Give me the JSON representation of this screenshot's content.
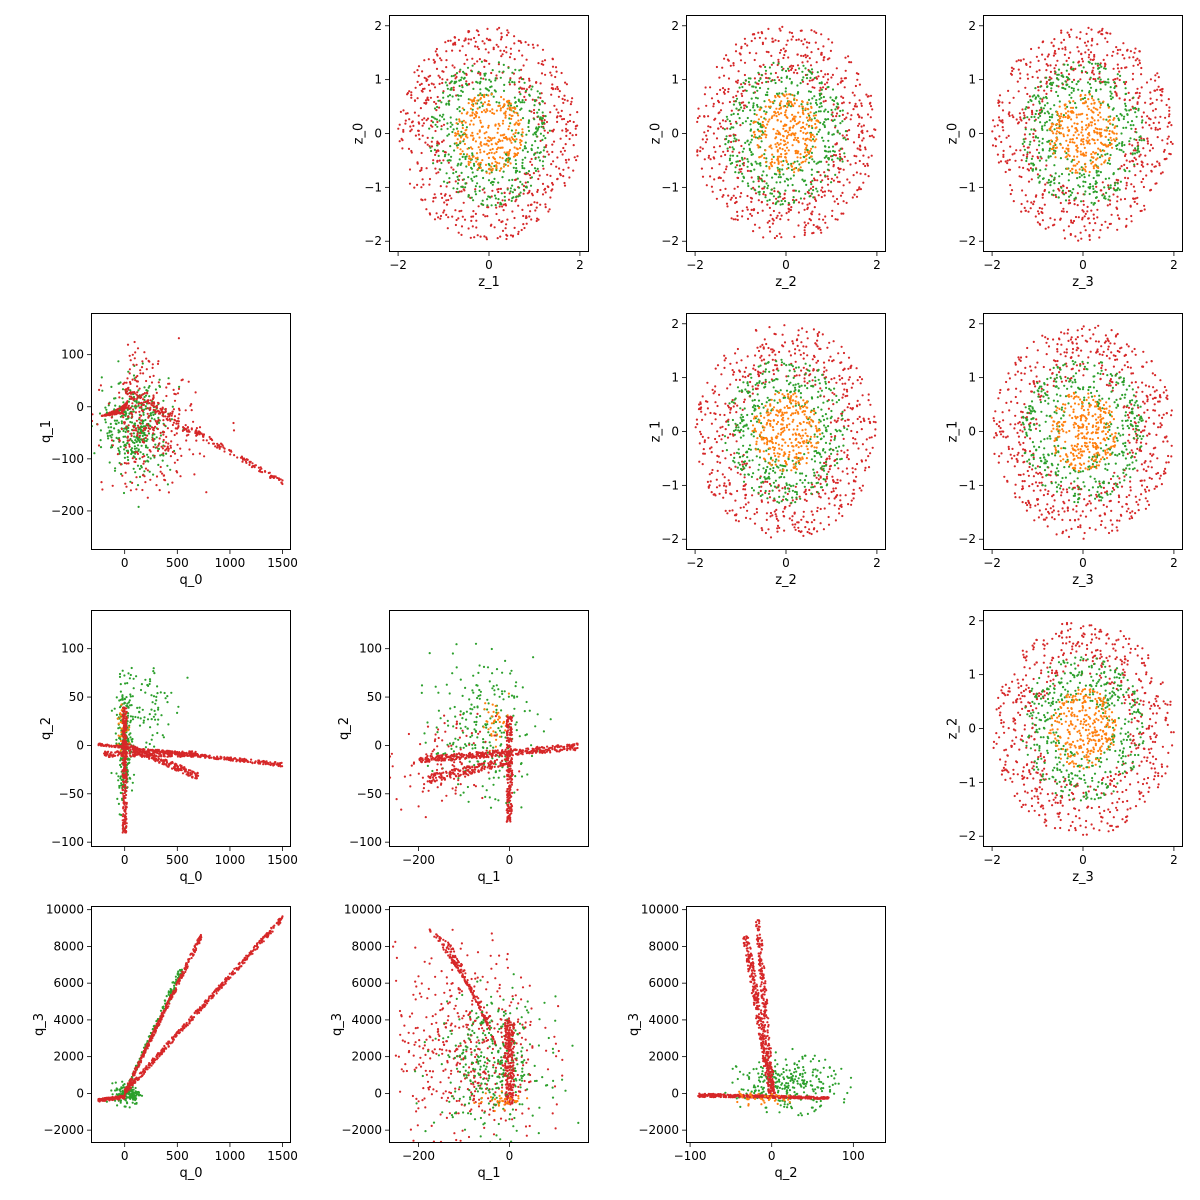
{
  "colors": {
    "red": "#d62728",
    "green": "#2ca02c",
    "orange": "#ff7f0e"
  },
  "chart_data": [
    {
      "type": "scatter",
      "row": 0,
      "col": 1,
      "xlabel": "z_1",
      "ylabel": "z_0",
      "xlim": [
        -2.2,
        2.2
      ],
      "ylim": [
        -2.2,
        2.2
      ],
      "xticks": [
        -2,
        0,
        2
      ],
      "xtick_labels": [
        "−2",
        "0",
        "2"
      ],
      "yticks": [
        -2,
        -1,
        0,
        1,
        2
      ],
      "ytick_labels": [
        "−2",
        "−1",
        "0",
        "1",
        "2"
      ],
      "series": [
        {
          "color": "#d62728",
          "shape": "disk",
          "radius_max": 2.0,
          "radius_min": 1.0,
          "count": 650
        },
        {
          "color": "#2ca02c",
          "shape": "disk",
          "radius_max": 1.35,
          "radius_min": 0.5,
          "count": 450
        },
        {
          "color": "#ff7f0e",
          "shape": "disk",
          "radius_max": 0.75,
          "radius_min": 0,
          "count": 300
        }
      ]
    },
    {
      "type": "scatter",
      "row": 0,
      "col": 2,
      "xlabel": "z_2",
      "ylabel": "z_0",
      "xlim": [
        -2.2,
        2.2
      ],
      "ylim": [
        -2.2,
        2.2
      ],
      "xticks": [
        -2,
        0,
        2
      ],
      "xtick_labels": [
        "−2",
        "0",
        "2"
      ],
      "yticks": [
        -2,
        -1,
        0,
        1,
        2
      ],
      "ytick_labels": [
        "−2",
        "−1",
        "0",
        "1",
        "2"
      ],
      "series": [
        {
          "color": "#d62728",
          "shape": "disk",
          "radius_max": 2.0,
          "radius_min": 1.0,
          "count": 650
        },
        {
          "color": "#2ca02c",
          "shape": "disk",
          "radius_max": 1.35,
          "radius_min": 0.5,
          "count": 450
        },
        {
          "color": "#ff7f0e",
          "shape": "disk",
          "radius_max": 0.75,
          "radius_min": 0,
          "count": 300
        }
      ]
    },
    {
      "type": "scatter",
      "row": 0,
      "col": 3,
      "xlabel": "z_3",
      "ylabel": "z_0",
      "xlim": [
        -2.2,
        2.2
      ],
      "ylim": [
        -2.2,
        2.2
      ],
      "xticks": [
        -2,
        0,
        2
      ],
      "xtick_labels": [
        "−2",
        "0",
        "2"
      ],
      "yticks": [
        -2,
        -1,
        0,
        1,
        2
      ],
      "ytick_labels": [
        "−2",
        "−1",
        "0",
        "1",
        "2"
      ],
      "series": [
        {
          "color": "#d62728",
          "shape": "disk",
          "radius_max": 2.0,
          "radius_min": 1.0,
          "count": 650
        },
        {
          "color": "#2ca02c",
          "shape": "disk",
          "radius_max": 1.35,
          "radius_min": 0.5,
          "count": 450
        },
        {
          "color": "#ff7f0e",
          "shape": "disk",
          "radius_max": 0.75,
          "radius_min": 0,
          "count": 300
        }
      ]
    },
    {
      "type": "scatter",
      "row": 1,
      "col": 2,
      "xlabel": "z_2",
      "ylabel": "z_1",
      "xlim": [
        -2.2,
        2.2
      ],
      "ylim": [
        -2.2,
        2.2
      ],
      "xticks": [
        -2,
        0,
        2
      ],
      "xtick_labels": [
        "−2",
        "0",
        "2"
      ],
      "yticks": [
        -2,
        -1,
        0,
        1,
        2
      ],
      "ytick_labels": [
        "−2",
        "−1",
        "0",
        "1",
        "2"
      ],
      "series": [
        {
          "color": "#d62728",
          "shape": "disk",
          "radius_max": 2.0,
          "radius_min": 1.0,
          "count": 650
        },
        {
          "color": "#2ca02c",
          "shape": "disk",
          "radius_max": 1.35,
          "radius_min": 0.5,
          "count": 450
        },
        {
          "color": "#ff7f0e",
          "shape": "disk",
          "radius_max": 0.75,
          "radius_min": 0,
          "count": 300
        }
      ]
    },
    {
      "type": "scatter",
      "row": 1,
      "col": 3,
      "xlabel": "z_3",
      "ylabel": "z_1",
      "xlim": [
        -2.2,
        2.2
      ],
      "ylim": [
        -2.2,
        2.2
      ],
      "xticks": [
        -2,
        0,
        2
      ],
      "xtick_labels": [
        "−2",
        "0",
        "2"
      ],
      "yticks": [
        -2,
        -1,
        0,
        1,
        2
      ],
      "ytick_labels": [
        "−2",
        "−1",
        "0",
        "1",
        "2"
      ],
      "series": [
        {
          "color": "#d62728",
          "shape": "disk",
          "radius_max": 2.0,
          "radius_min": 1.0,
          "count": 650
        },
        {
          "color": "#2ca02c",
          "shape": "disk",
          "radius_max": 1.35,
          "radius_min": 0.5,
          "count": 450
        },
        {
          "color": "#ff7f0e",
          "shape": "disk",
          "radius_max": 0.75,
          "radius_min": 0,
          "count": 300
        }
      ]
    },
    {
      "type": "scatter",
      "row": 2,
      "col": 3,
      "xlabel": "z_3",
      "ylabel": "z_2",
      "xlim": [
        -2.2,
        2.2
      ],
      "ylim": [
        -2.2,
        2.2
      ],
      "xticks": [
        -2,
        0,
        2
      ],
      "xtick_labels": [
        "−2",
        "0",
        "2"
      ],
      "yticks": [
        -2,
        -1,
        0,
        1,
        2
      ],
      "ytick_labels": [
        "−2",
        "−1",
        "0",
        "1",
        "2"
      ],
      "series": [
        {
          "color": "#d62728",
          "shape": "disk",
          "radius_max": 2.0,
          "radius_min": 1.0,
          "count": 650
        },
        {
          "color": "#2ca02c",
          "shape": "disk",
          "radius_max": 1.35,
          "radius_min": 0.5,
          "count": 450
        },
        {
          "color": "#ff7f0e",
          "shape": "disk",
          "radius_max": 0.75,
          "radius_min": 0,
          "count": 300
        }
      ]
    },
    {
      "type": "scatter",
      "row": 1,
      "col": 0,
      "xlabel": "q_0",
      "ylabel": "q_1",
      "xlim": [
        -320,
        1580
      ],
      "ylim": [
        -275,
        180
      ],
      "xticks": [
        0,
        500,
        1000,
        1500
      ],
      "xtick_labels": [
        "0",
        "500",
        "1000",
        "1500"
      ],
      "yticks": [
        -200,
        -100,
        0,
        100
      ],
      "ytick_labels": [
        "−200",
        "−100",
        "0",
        "100"
      ],
      "series": [
        {
          "color": "#d62728",
          "shape": "band",
          "x0": [
            -250,
            0
          ],
          "y0": [
            -20,
            0
          ],
          "x1": [
            0,
            30
          ],
          "y1": [
            -12,
            12
          ],
          "count": 220
        },
        {
          "color": "#2ca02c",
          "shape": "cloud",
          "cx": 120,
          "cy": -40,
          "sx": 160,
          "sy": 45,
          "count": 380
        },
        {
          "color": "#d62728",
          "shape": "cloud",
          "cx": 250,
          "cy": -50,
          "sx": 220,
          "sy": 55,
          "count": 300
        },
        {
          "color": "#d62728",
          "shape": "band",
          "x0": [
            0,
            0
          ],
          "y0": [
            20,
            40
          ],
          "x1": [
            1500,
            1500
          ],
          "y1": [
            -150,
            -140
          ],
          "count": 200
        },
        {
          "color": "#d62728",
          "shape": "cloud",
          "cx": 130,
          "cy": 70,
          "sx": 60,
          "sy": 40,
          "count": 40
        }
      ]
    },
    {
      "type": "scatter",
      "row": 2,
      "col": 0,
      "xlabel": "q_0",
      "ylabel": "q_2",
      "xlim": [
        -320,
        1580
      ],
      "ylim": [
        -105,
        140
      ],
      "xticks": [
        0,
        500,
        1000,
        1500
      ],
      "xtick_labels": [
        "0",
        "500",
        "1000",
        "1500"
      ],
      "yticks": [
        -100,
        -50,
        0,
        50,
        100
      ],
      "ytick_labels": [
        "−100",
        "−50",
        "0",
        "50",
        "100"
      ],
      "series": [
        {
          "color": "#2ca02c",
          "shape": "cloud",
          "cx": 0,
          "cy": 0,
          "sx": 40,
          "sy": 30,
          "count": 250
        },
        {
          "color": "#ff7f0e",
          "shape": "cloud",
          "cx": -10,
          "cy": 20,
          "sx": 20,
          "sy": 15,
          "count": 60
        },
        {
          "color": "#2ca02c",
          "shape": "cloud",
          "cx": 200,
          "cy": 40,
          "sx": 120,
          "sy": 25,
          "count": 80
        },
        {
          "color": "#d62728",
          "shape": "band",
          "x0": [
            -250,
            -250
          ],
          "y0": [
            0,
            2
          ],
          "x1": [
            1500,
            1500
          ],
          "y1": [
            -22,
            -18
          ],
          "count": 350
        },
        {
          "color": "#d62728",
          "shape": "band",
          "x0": [
            0,
            0
          ],
          "y0": [
            -3,
            3
          ],
          "x1": [
            700,
            700
          ],
          "y1": [
            -36,
            -28
          ],
          "count": 200
        },
        {
          "color": "#d62728",
          "shape": "band",
          "x0": [
            -20,
            20
          ],
          "y0": [
            -90,
            -90
          ],
          "x1": [
            -20,
            20
          ],
          "y1": [
            40,
            40
          ],
          "count": 260
        },
        {
          "color": "#d62728",
          "shape": "band",
          "x0": [
            -200,
            -200
          ],
          "y0": [
            -12,
            -6
          ],
          "x1": [
            700,
            700
          ],
          "y1": [
            -12,
            -6
          ],
          "count": 200
        }
      ]
    },
    {
      "type": "scatter",
      "row": 2,
      "col": 1,
      "xlabel": "q_1",
      "ylabel": "q_2",
      "xlim": [
        -265,
        175
      ],
      "ylim": [
        -105,
        140
      ],
      "xticks": [
        -200,
        0
      ],
      "xtick_labels": [
        "−200",
        "0"
      ],
      "yticks": [
        -100,
        -50,
        0,
        50,
        100
      ],
      "ytick_labels": [
        "−100",
        "−50",
        "0",
        "50",
        "100"
      ],
      "series": [
        {
          "color": "#2ca02c",
          "shape": "cloud",
          "cx": -60,
          "cy": 15,
          "sx": 55,
          "sy": 35,
          "count": 260
        },
        {
          "color": "#ff7f0e",
          "shape": "cloud",
          "cx": -30,
          "cy": 25,
          "sx": 15,
          "sy": 12,
          "count": 40
        },
        {
          "color": "#d62728",
          "shape": "band",
          "x0": [
            -200,
            -200
          ],
          "y0": [
            -18,
            -12
          ],
          "x1": [
            150,
            150
          ],
          "y1": [
            -5,
            2
          ],
          "count": 380
        },
        {
          "color": "#d62728",
          "shape": "band",
          "x0": [
            -6,
            6
          ],
          "y0": [
            -80,
            -80
          ],
          "x1": [
            -6,
            6
          ],
          "y1": [
            30,
            30
          ],
          "count": 240
        },
        {
          "color": "#d62728",
          "shape": "band",
          "x0": [
            -180,
            -180
          ],
          "y0": [
            -40,
            -30
          ],
          "x1": [
            0,
            0
          ],
          "y1": [
            -20,
            -12
          ],
          "count": 180
        },
        {
          "color": "#d62728",
          "shape": "cloud",
          "cx": -150,
          "cy": -20,
          "sx": 60,
          "sy": 25,
          "count": 120
        }
      ]
    },
    {
      "type": "scatter",
      "row": 3,
      "col": 0,
      "xlabel": "q_0",
      "ylabel": "q_3",
      "xlim": [
        -320,
        1580
      ],
      "ylim": [
        -2700,
        10200
      ],
      "xticks": [
        0,
        500,
        1000,
        1500
      ],
      "xtick_labels": [
        "0",
        "500",
        "1000",
        "1500"
      ],
      "yticks": [
        -2000,
        0,
        2000,
        4000,
        6000,
        8000,
        10000
      ],
      "ytick_labels": [
        "−2000",
        "0",
        "2000",
        "4000",
        "6000",
        "8000",
        "10000"
      ],
      "series": [
        {
          "color": "#2ca02c",
          "shape": "cloud",
          "cx": 30,
          "cy": 0,
          "sx": 60,
          "sy": 300,
          "count": 150
        },
        {
          "color": "#2ca02c",
          "shape": "band",
          "x0": [
            0,
            0
          ],
          "y0": [
            -100,
            100
          ],
          "x1": [
            550,
            550
          ],
          "y1": [
            6500,
            7300
          ],
          "count": 160
        },
        {
          "color": "#d62728",
          "shape": "band",
          "x0": [
            -250,
            -250
          ],
          "y0": [
            -450,
            -300
          ],
          "x1": [
            0,
            0
          ],
          "y1": [
            -300,
            -100
          ],
          "count": 150
        },
        {
          "color": "#d62728",
          "shape": "band",
          "x0": [
            0,
            0
          ],
          "y0": [
            -100,
            200
          ],
          "x1": [
            1500,
            1500
          ],
          "y1": [
            9400,
            9700
          ],
          "count": 420
        },
        {
          "color": "#d62728",
          "shape": "band",
          "x0": [
            0,
            0
          ],
          "y0": [
            -100,
            200
          ],
          "x1": [
            730,
            730
          ],
          "y1": [
            8400,
            8800
          ],
          "count": 300
        }
      ]
    },
    {
      "type": "scatter",
      "row": 3,
      "col": 1,
      "xlabel": "q_1",
      "ylabel": "q_3",
      "xlim": [
        -265,
        175
      ],
      "ylim": [
        -2700,
        10200
      ],
      "xticks": [
        -200,
        0
      ],
      "xtick_labels": [
        "−200",
        "0"
      ],
      "yticks": [
        -2000,
        0,
        2000,
        4000,
        6000,
        8000,
        10000
      ],
      "ytick_labels": [
        "−2000",
        "0",
        "2000",
        "4000",
        "6000",
        "8000",
        "10000"
      ],
      "series": [
        {
          "color": "#d62728",
          "shape": "cloud",
          "cx": -90,
          "cy": 2500,
          "sx": 80,
          "sy": 2600,
          "count": 500
        },
        {
          "color": "#d62728",
          "shape": "band",
          "x0": [
            -180,
            -120
          ],
          "y0": [
            9000,
            8000
          ],
          "x1": [
            -60,
            -20
          ],
          "y1": [
            5000,
            2000
          ],
          "count": 200
        },
        {
          "color": "#2ca02c",
          "shape": "cloud",
          "cx": -40,
          "cy": 1500,
          "sx": 60,
          "sy": 1800,
          "count": 350
        },
        {
          "color": "#d62728",
          "shape": "band",
          "x0": [
            -10,
            10
          ],
          "y0": [
            -600,
            -600
          ],
          "x1": [
            -10,
            10
          ],
          "y1": [
            4000,
            4000
          ],
          "count": 250
        },
        {
          "color": "#ff7f0e",
          "shape": "cloud",
          "cx": -20,
          "cy": -400,
          "sx": 30,
          "sy": 200,
          "count": 40
        }
      ]
    },
    {
      "type": "scatter",
      "row": 3,
      "col": 2,
      "xlabel": "q_2",
      "ylabel": "q_3",
      "xlim": [
        -105,
        140
      ],
      "ylim": [
        -2700,
        10200
      ],
      "xticks": [
        -100,
        0,
        100
      ],
      "xtick_labels": [
        "−100",
        "0",
        "100"
      ],
      "yticks": [
        -2000,
        0,
        2000,
        4000,
        6000,
        8000,
        10000
      ],
      "ytick_labels": [
        "−2000",
        "0",
        "2000",
        "4000",
        "6000",
        "8000",
        "10000"
      ],
      "series": [
        {
          "color": "#2ca02c",
          "shape": "cloud",
          "cx": 20,
          "cy": 500,
          "sx": 30,
          "sy": 700,
          "count": 300
        },
        {
          "color": "#d62728",
          "shape": "band",
          "x0": [
            -36,
            -28
          ],
          "y0": [
            8600,
            8600
          ],
          "x1": [
            -4,
            4
          ],
          "y1": [
            0,
            0
          ],
          "count": 300
        },
        {
          "color": "#d62728",
          "shape": "band",
          "x0": [
            -20,
            -14
          ],
          "y0": [
            9500,
            9500
          ],
          "x1": [
            -4,
            4
          ],
          "y1": [
            0,
            0
          ],
          "count": 220
        },
        {
          "color": "#d62728",
          "shape": "band",
          "x0": [
            -90,
            -90
          ],
          "y0": [
            -200,
            0
          ],
          "x1": [
            70,
            70
          ],
          "y1": [
            -300,
            -200
          ],
          "count": 380
        },
        {
          "color": "#ff7f0e",
          "shape": "cloud",
          "cx": -20,
          "cy": -300,
          "sx": 20,
          "sy": 150,
          "count": 40
        }
      ]
    }
  ]
}
